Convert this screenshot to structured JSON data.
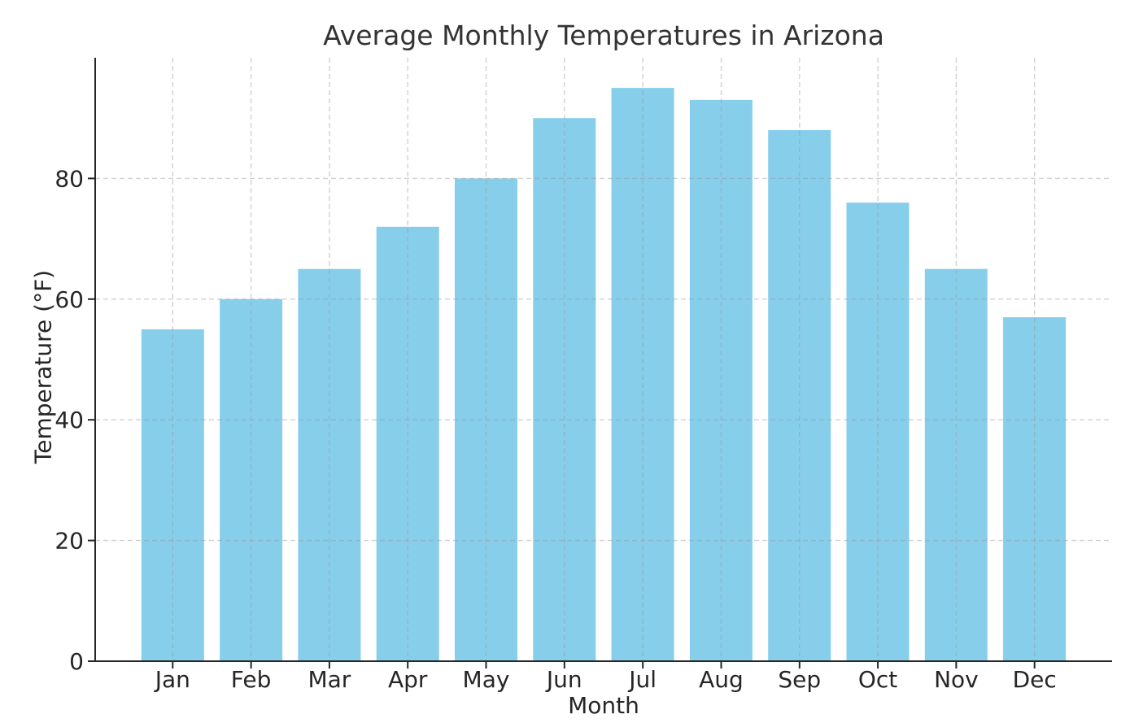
{
  "figure": {
    "background": "#ffffff",
    "text_color": "#262626",
    "spine_color": "#262626",
    "grid_color": "#9a9a9a",
    "grid_opacity": 0.45
  },
  "chart_data": {
    "type": "bar",
    "title": "Average Monthly Temperatures in Arizona",
    "xlabel": "Month",
    "ylabel": "Temperature (°F)",
    "categories": [
      "Jan",
      "Feb",
      "Mar",
      "Apr",
      "May",
      "Jun",
      "Jul",
      "Aug",
      "Sep",
      "Oct",
      "Nov",
      "Dec"
    ],
    "values": [
      55,
      60,
      65,
      72,
      80,
      90,
      95,
      93,
      88,
      76,
      65,
      57
    ],
    "bar_color": "#87CEEB",
    "bar_edge": "none",
    "yticks": [
      0,
      20,
      40,
      60,
      80
    ],
    "ylim": [
      0,
      100
    ],
    "grid": true,
    "grid_style": "dashed",
    "grid_axes": "both",
    "legend": "none",
    "spines": [
      "left",
      "bottom"
    ]
  }
}
